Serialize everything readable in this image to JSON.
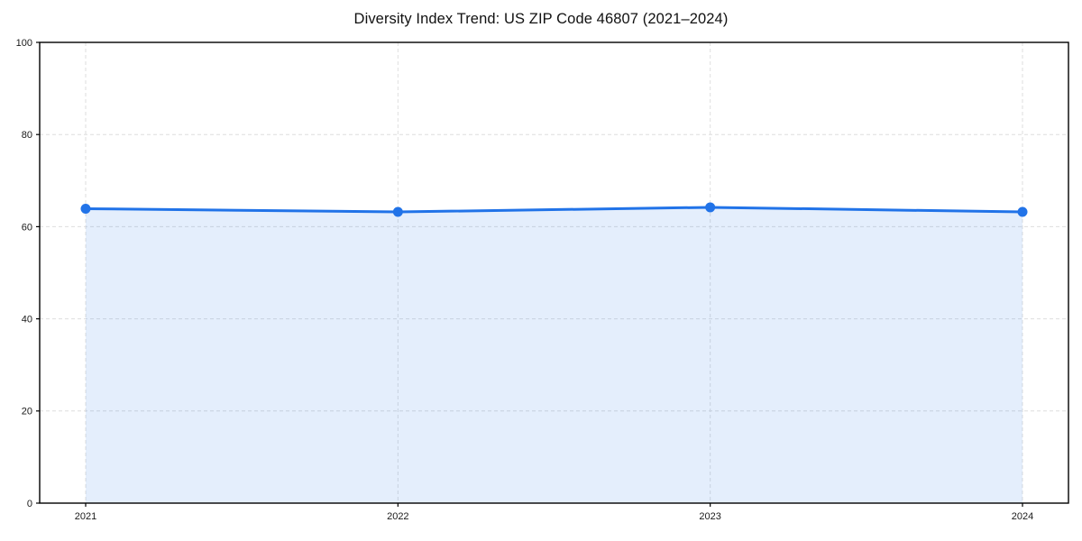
{
  "page": {
    "background_color": "#ffffff"
  },
  "chart_data": {
    "type": "area",
    "title": "Diversity Index Trend: US ZIP Code 46807 (2021–2024)",
    "series_name": "Diversity Index",
    "x": [
      2021,
      2022,
      2023,
      2024
    ],
    "xtick_labels": [
      "2021",
      "2022",
      "2023",
      "2024"
    ],
    "values": [
      63.9,
      63.2,
      64.2,
      63.2
    ],
    "xlabel": "",
    "ylabel": "",
    "ylim": [
      0,
      100
    ],
    "yticks": [
      0,
      20,
      40,
      60,
      80,
      100
    ],
    "grid": "dashed",
    "legend_position": "none",
    "line_color": "#2173e8",
    "marker": "circle",
    "fill_color": "#2173e8",
    "fill_opacity": 0.12,
    "grid_color": "#dedede",
    "axis_color": "#000000",
    "tick_label_color": "#1a1a1a",
    "title_color": "#111111"
  }
}
